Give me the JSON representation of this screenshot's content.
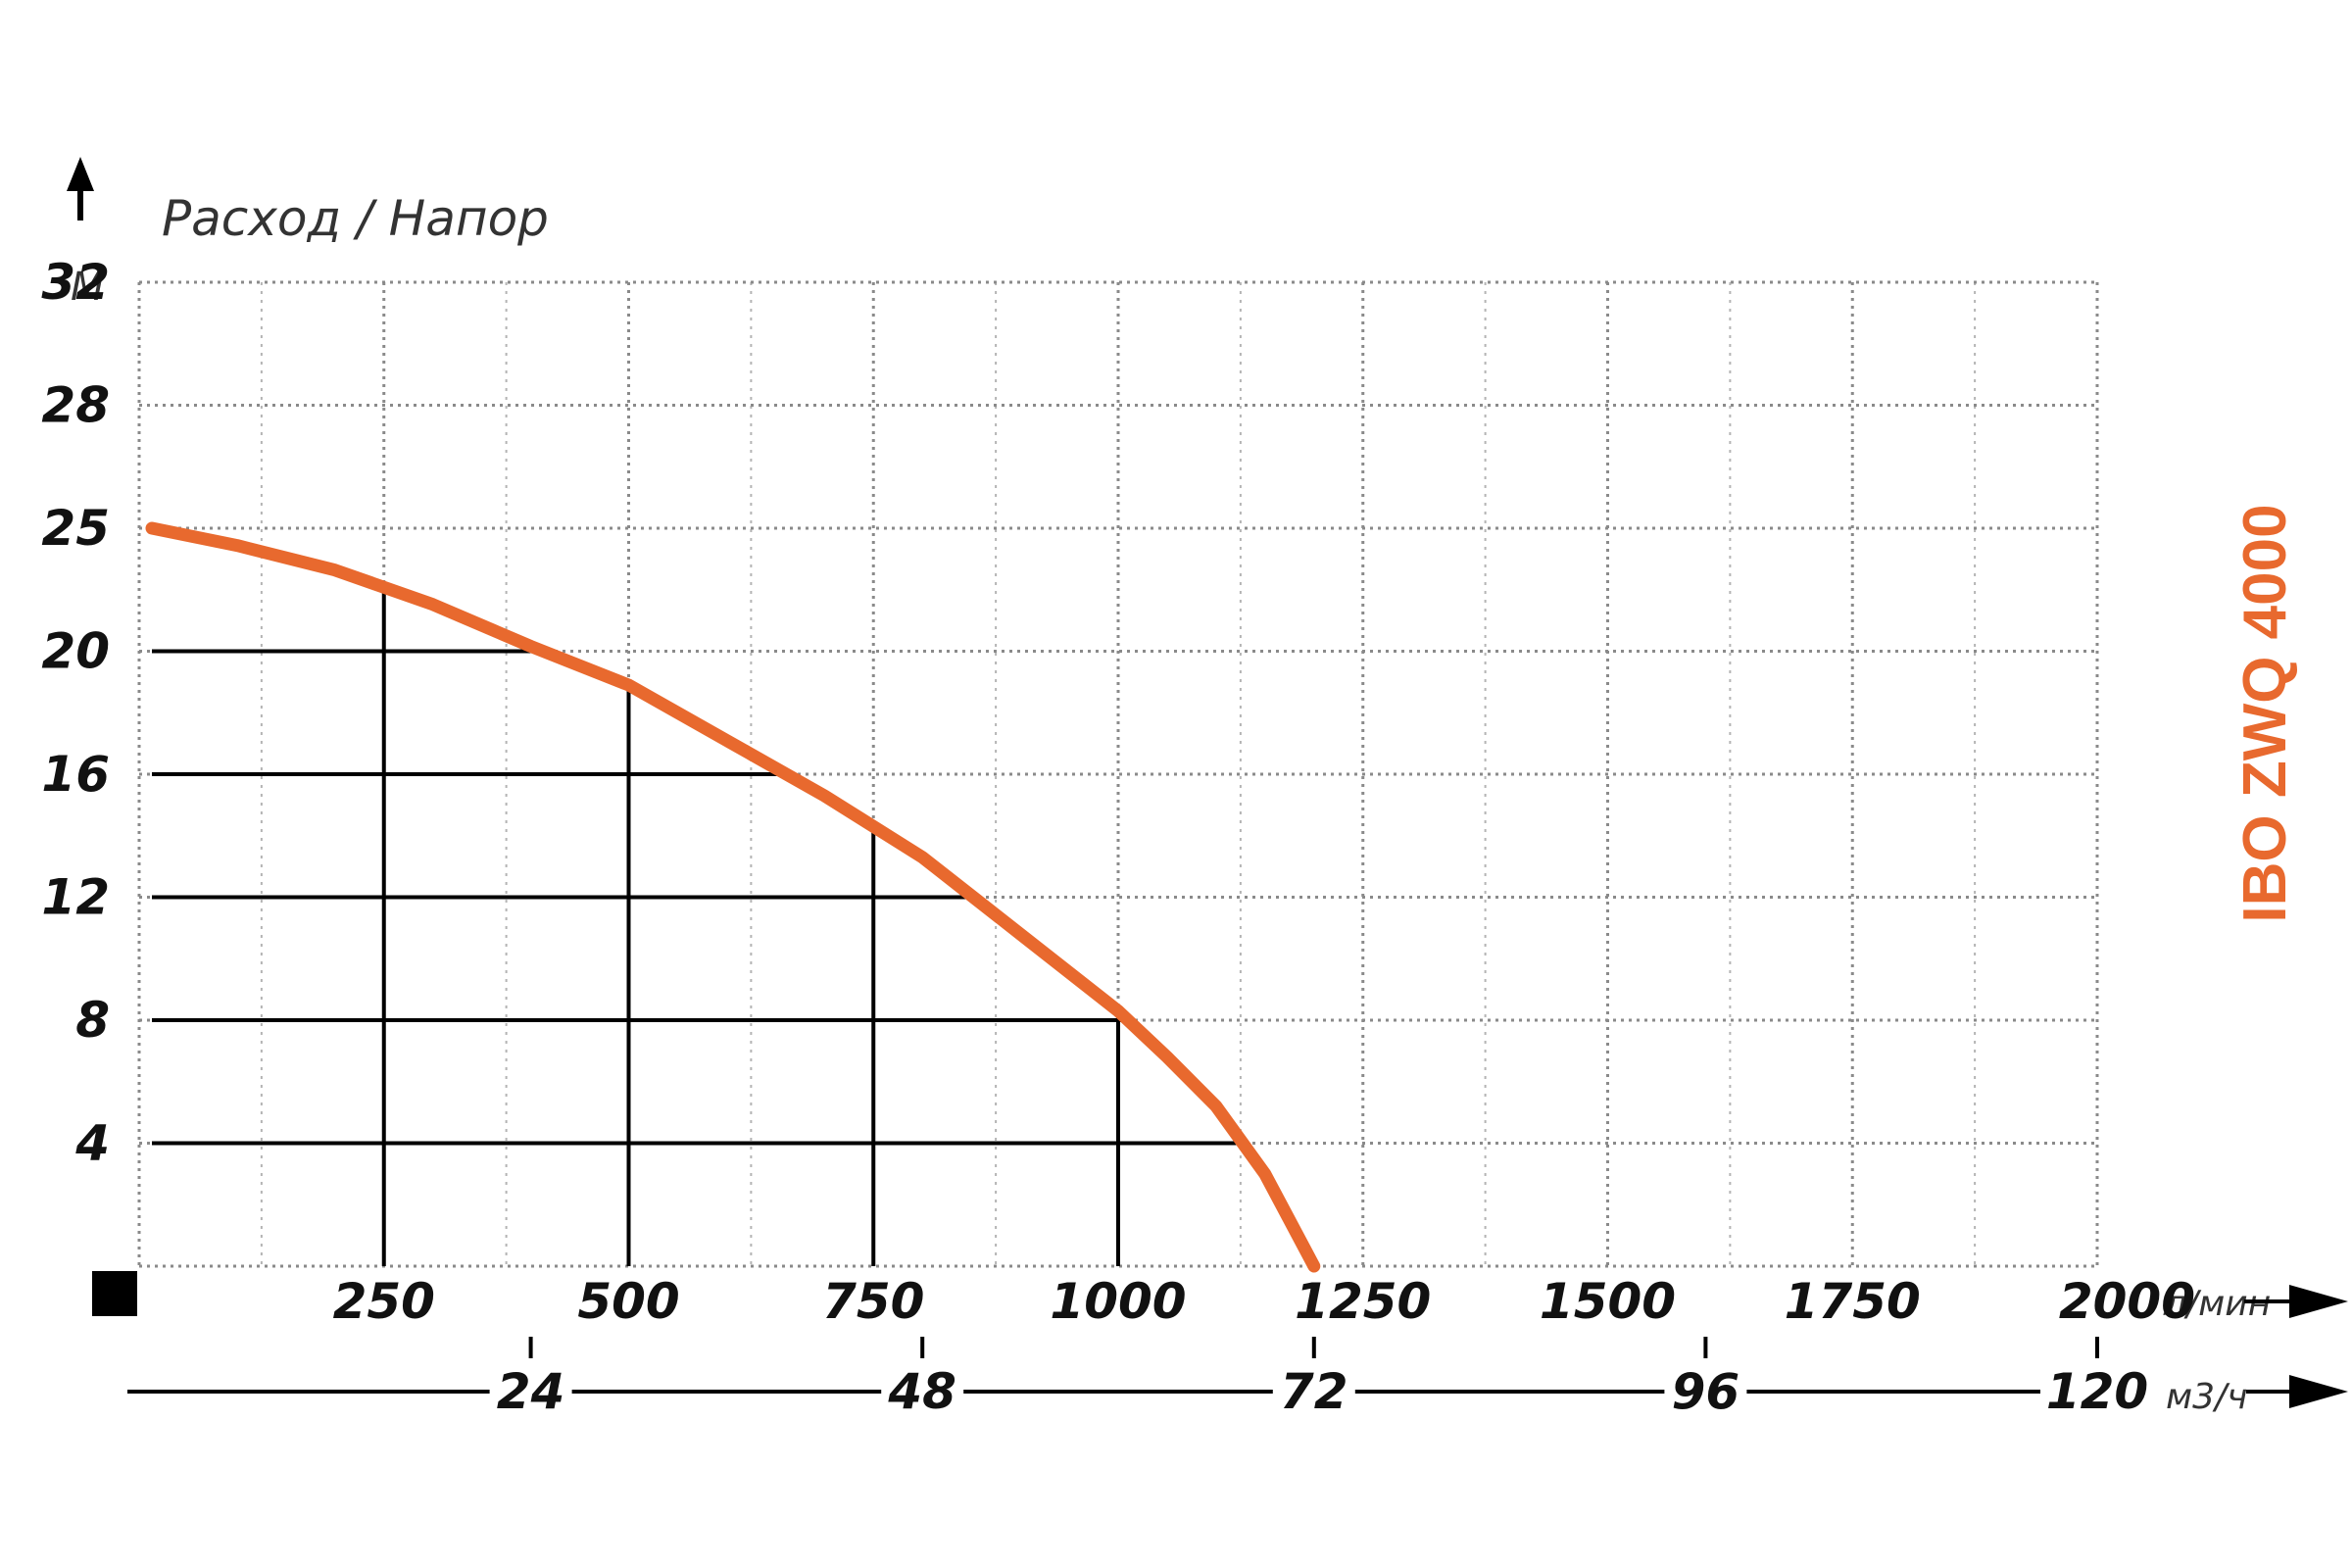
{
  "chart_data": {
    "type": "line",
    "title": "Расход / Напор",
    "series": [
      {
        "name": "IBO ZWQ 4000",
        "color": "#E8692E",
        "x": [
          0,
          100,
          200,
          300,
          400,
          500,
          600,
          700,
          800,
          900,
          1000,
          1050,
          1100,
          1150,
          1200
        ],
        "y": [
          25,
          24.3,
          23.3,
          21.9,
          20.2,
          18.9,
          17.1,
          15.3,
          13.3,
          10.8,
          8.3,
          6.8,
          5.2,
          3.0,
          0
        ]
      }
    ],
    "x_axis": {
      "unit": "л/мин",
      "range": [
        0,
        2000
      ],
      "tick_labels": [
        "250",
        "500",
        "750",
        "1000",
        "1250",
        "1500",
        "1750",
        "2000"
      ]
    },
    "x2_axis": {
      "unit": "м3/ч",
      "tick_labels": [
        "24",
        "48",
        "72",
        "96",
        "120"
      ]
    },
    "y_axis": {
      "unit": "М",
      "tick_labels": [
        "4",
        "8",
        "12",
        "16",
        "20",
        "25",
        "28",
        "32"
      ],
      "tick_values": [
        4,
        8,
        12,
        16,
        20,
        25,
        28,
        32
      ]
    },
    "reference_lines": {
      "vertical_at_flow": [
        250,
        500,
        750,
        1000
      ],
      "horizontal_at_head": [
        20,
        16,
        12,
        8,
        4
      ]
    },
    "grid": true
  }
}
